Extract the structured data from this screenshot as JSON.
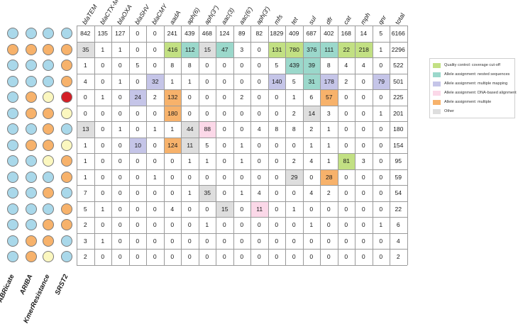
{
  "colors": {
    "blue": "#a9d8ea",
    "orange": "#f7b26b",
    "yellow": "#fbf7bf",
    "red": "#d31f26",
    "green": "#c2e083",
    "teal": "#9bd8cb",
    "lavender": "#c5c5e8",
    "pink": "#fbd8e8",
    "amber": "#f7b26b",
    "grey": "#dedede",
    "border": "#7a7a7a"
  },
  "tools": [
    "ABRicate",
    "ARIBA",
    "KmerResistance",
    "SRST2"
  ],
  "genes": [
    "blaTEM",
    "blaCTX-M",
    "blaOXA",
    "blaSHV",
    "blaCMY",
    "aadA",
    "aph(6)",
    "aph(3'')",
    "aac(3)",
    "aac(6')",
    "aph(3')",
    "mfs",
    "tet",
    "sul",
    "dfr",
    "cat",
    "mph",
    "qnr",
    "total"
  ],
  "rows": [
    {
      "dots": [
        "blue",
        "blue",
        "blue",
        "blue"
      ],
      "values": [
        "842",
        "135",
        "127",
        "0",
        "0",
        "241",
        "439",
        "468",
        "124",
        "89",
        "82",
        "1829",
        "409",
        "687",
        "402",
        "168",
        "14",
        "5",
        "6166"
      ],
      "highlights": {}
    },
    {
      "dots": [
        "orange",
        "orange",
        "orange",
        "orange"
      ],
      "values": [
        "35",
        "1",
        "1",
        "0",
        "0",
        "416",
        "112",
        "15",
        "47",
        "3",
        "0",
        "131",
        "780",
        "376",
        "111",
        "22",
        "218",
        "1",
        "2296"
      ],
      "highlights": {
        "0": "grey",
        "5": "green",
        "6": "teal",
        "7": "grey",
        "8": "teal",
        "11": "green",
        "12": "green",
        "13": "teal",
        "14": "teal",
        "15": "green",
        "16": "green"
      }
    },
    {
      "dots": [
        "blue",
        "blue",
        "blue",
        "orange"
      ],
      "values": [
        "1",
        "0",
        "0",
        "5",
        "0",
        "8",
        "8",
        "0",
        "0",
        "0",
        "0",
        "5",
        "439",
        "39",
        "8",
        "4",
        "4",
        "0",
        "522"
      ],
      "highlights": {
        "12": "teal",
        "13": "teal"
      }
    },
    {
      "dots": [
        "blue",
        "blue",
        "blue",
        "orange"
      ],
      "values": [
        "4",
        "0",
        "1",
        "0",
        "32",
        "1",
        "1",
        "0",
        "0",
        "0",
        "0",
        "140",
        "5",
        "31",
        "178",
        "2",
        "0",
        "79",
        "501"
      ],
      "highlights": {
        "4": "lavender",
        "11": "lavender",
        "13": "teal",
        "14": "lavender",
        "17": "lavender"
      }
    },
    {
      "dots": [
        "blue",
        "orange",
        "yellow",
        "red"
      ],
      "values": [
        "0",
        "1",
        "0",
        "24",
        "2",
        "132",
        "0",
        "0",
        "0",
        "2",
        "0",
        "0",
        "1",
        "6",
        "57",
        "0",
        "0",
        "0",
        "225"
      ],
      "highlights": {
        "3": "lavender",
        "5": "amber",
        "14": "amber"
      }
    },
    {
      "dots": [
        "blue",
        "orange",
        "orange",
        "yellow"
      ],
      "values": [
        "0",
        "0",
        "0",
        "0",
        "0",
        "180",
        "0",
        "0",
        "0",
        "0",
        "0",
        "0",
        "2",
        "14",
        "3",
        "0",
        "0",
        "1",
        "201"
      ],
      "highlights": {
        "5": "amber",
        "13": "grey"
      }
    },
    {
      "dots": [
        "blue",
        "blue",
        "orange",
        "blue"
      ],
      "values": [
        "13",
        "0",
        "1",
        "0",
        "1",
        "1",
        "44",
        "88",
        "0",
        "0",
        "4",
        "8",
        "8",
        "2",
        "1",
        "0",
        "0",
        "0",
        "180"
      ],
      "highlights": {
        "0": "grey",
        "6": "grey",
        "7": "pink"
      }
    },
    {
      "dots": [
        "blue",
        "orange",
        "orange",
        "yellow"
      ],
      "values": [
        "1",
        "0",
        "0",
        "10",
        "0",
        "124",
        "11",
        "5",
        "0",
        "1",
        "0",
        "0",
        "0",
        "1",
        "1",
        "0",
        "0",
        "0",
        "154"
      ],
      "highlights": {
        "3": "lavender",
        "5": "amber",
        "6": "grey"
      }
    },
    {
      "dots": [
        "blue",
        "blue",
        "yellow",
        "orange"
      ],
      "values": [
        "1",
        "0",
        "0",
        "0",
        "0",
        "0",
        "1",
        "1",
        "0",
        "1",
        "0",
        "0",
        "2",
        "4",
        "1",
        "81",
        "3",
        "0",
        "95"
      ],
      "highlights": {
        "15": "green"
      }
    },
    {
      "dots": [
        "blue",
        "blue",
        "blue",
        "orange"
      ],
      "values": [
        "1",
        "0",
        "0",
        "0",
        "1",
        "0",
        "0",
        "0",
        "0",
        "0",
        "0",
        "0",
        "29",
        "0",
        "28",
        "0",
        "0",
        "0",
        "59"
      ],
      "highlights": {
        "12": "grey",
        "14": "amber"
      }
    },
    {
      "dots": [
        "blue",
        "blue",
        "orange",
        "blue"
      ],
      "values": [
        "7",
        "0",
        "0",
        "0",
        "0",
        "0",
        "1",
        "35",
        "0",
        "1",
        "4",
        "0",
        "0",
        "4",
        "2",
        "0",
        "0",
        "0",
        "54"
      ],
      "highlights": {
        "7": "grey"
      }
    },
    {
      "dots": [
        "blue",
        "blue",
        "blue",
        "orange"
      ],
      "values": [
        "5",
        "1",
        "0",
        "0",
        "0",
        "4",
        "0",
        "0",
        "15",
        "0",
        "11",
        "0",
        "1",
        "0",
        "0",
        "0",
        "0",
        "0",
        "22"
      ],
      "highlights": {
        "8": "grey",
        "10": "pink"
      }
    },
    {
      "dots": [
        "blue",
        "blue",
        "orange",
        "orange"
      ],
      "values": [
        "2",
        "0",
        "0",
        "0",
        "0",
        "0",
        "0",
        "1",
        "0",
        "0",
        "0",
        "0",
        "0",
        "1",
        "0",
        "0",
        "0",
        "1",
        "6"
      ],
      "highlights": {}
    },
    {
      "dots": [
        "blue",
        "orange",
        "orange",
        "blue"
      ],
      "values": [
        "3",
        "1",
        "0",
        "0",
        "0",
        "0",
        "0",
        "0",
        "0",
        "0",
        "0",
        "0",
        "0",
        "0",
        "0",
        "0",
        "0",
        "0",
        "4"
      ],
      "highlights": {}
    },
    {
      "dots": [
        "blue",
        "orange",
        "yellow",
        "blue"
      ],
      "values": [
        "2",
        "0",
        "0",
        "0",
        "0",
        "0",
        "0",
        "0",
        "0",
        "0",
        "0",
        "0",
        "0",
        "0",
        "0",
        "0",
        "0",
        "0",
        "2"
      ],
      "highlights": {}
    }
  ],
  "legend": [
    {
      "label": "Quality control: coverage cut-off",
      "color": "green"
    },
    {
      "label": "Allele assignment: nested sequences",
      "color": "teal"
    },
    {
      "label": "Allele assignment: multiple mapping",
      "color": "lavender"
    },
    {
      "label": "Allele assignment: DNA-based alignment",
      "color": "pink"
    },
    {
      "label": "Allele assignment: multiple",
      "color": "amber"
    },
    {
      "label": "Other",
      "color": "grey"
    }
  ]
}
